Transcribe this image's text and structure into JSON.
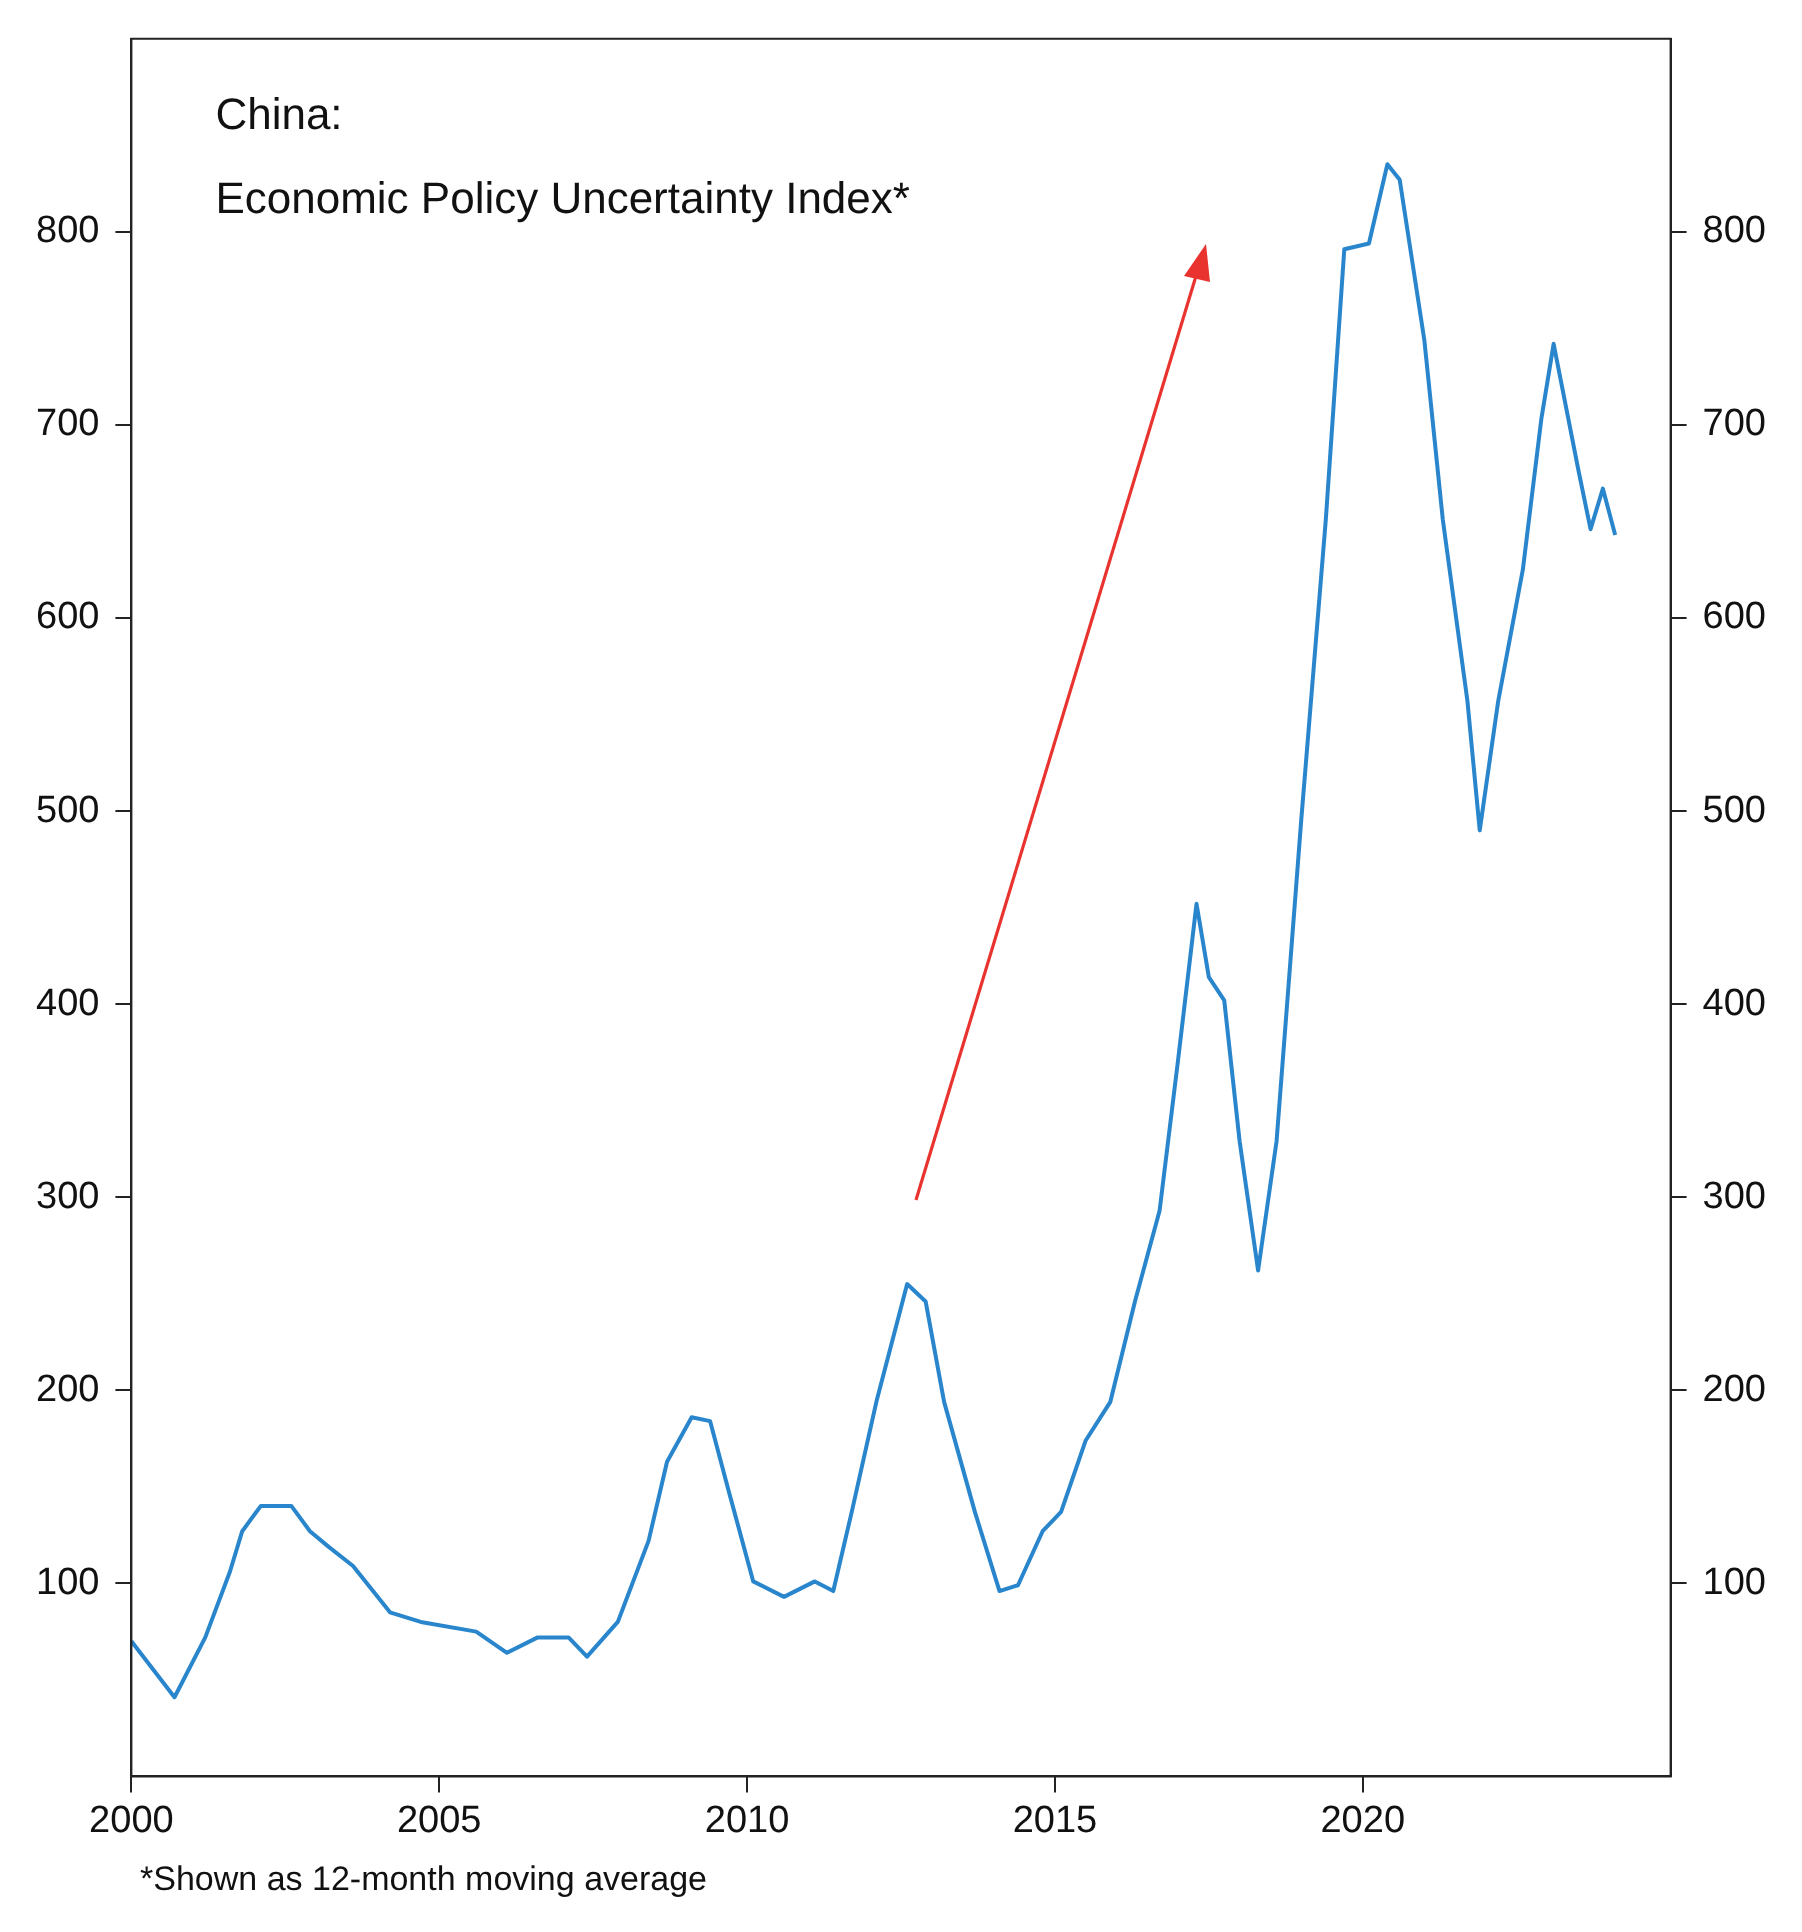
{
  "chart_data": {
    "type": "line",
    "title": "China:",
    "subtitle": "Economic Policy Uncertainty Index*",
    "annotations": [
      "*Shown as 12-month moving average"
    ],
    "x": [
      2000.0,
      2000.7,
      2001.2,
      2001.6,
      2001.8,
      2002.1,
      2002.6,
      2002.9,
      2003.2,
      2003.6,
      2004.2,
      2004.7,
      2005.6,
      2006.1,
      2006.6,
      2007.1,
      2007.4,
      2007.9,
      2008.4,
      2008.7,
      2009.1,
      2009.4,
      2009.7,
      2010.1,
      2010.6,
      2011.1,
      2011.4,
      2011.7,
      2012.1,
      2012.6,
      2012.9,
      2013.2,
      2013.7,
      2014.1,
      2014.4,
      2014.8,
      2015.1,
      2015.5,
      2015.9,
      2016.3,
      2016.7,
      2017.0,
      2017.3,
      2017.5,
      2017.75,
      2018.0,
      2018.3,
      2018.6,
      2019.0,
      2019.4,
      2019.7,
      2020.1,
      2020.4,
      2020.6,
      2021.0,
      2021.3,
      2021.7,
      2021.9,
      2022.2,
      2022.6,
      2022.9,
      2023.1,
      2023.5,
      2023.7,
      2023.9,
      2024.1
    ],
    "series": [
      {
        "color": "#2a86cc",
        "values": [
          70,
          41,
          72,
          106,
          127,
          140,
          140,
          127,
          119,
          109,
          85,
          80,
          75,
          64,
          72,
          72,
          62,
          80,
          122,
          163,
          186,
          184,
          148,
          101,
          93,
          101,
          96,
          137,
          194,
          255,
          246,
          194,
          137,
          96,
          99,
          127,
          137,
          174,
          194,
          246,
          293,
          371,
          452,
          414,
          402,
          329,
          262,
          329,
          495,
          651,
          791,
          794,
          835,
          827,
          744,
          651,
          557,
          490,
          557,
          625,
          703,
          742,
          677,
          646,
          667,
          643
        ]
      }
    ],
    "xlim": [
      2000,
      2025
    ],
    "xticks": [
      2000,
      2005,
      2010,
      2015,
      2020
    ],
    "ylim": [
      0,
      900
    ],
    "yticks": [
      100,
      200,
      300,
      400,
      500,
      600,
      700,
      800
    ],
    "y2lim": [
      0,
      900
    ],
    "y2ticks": [
      100,
      200,
      300,
      400,
      500,
      600,
      700,
      800
    ],
    "grid": false,
    "legend": false,
    "marker": "none",
    "line_style": "solid"
  }
}
